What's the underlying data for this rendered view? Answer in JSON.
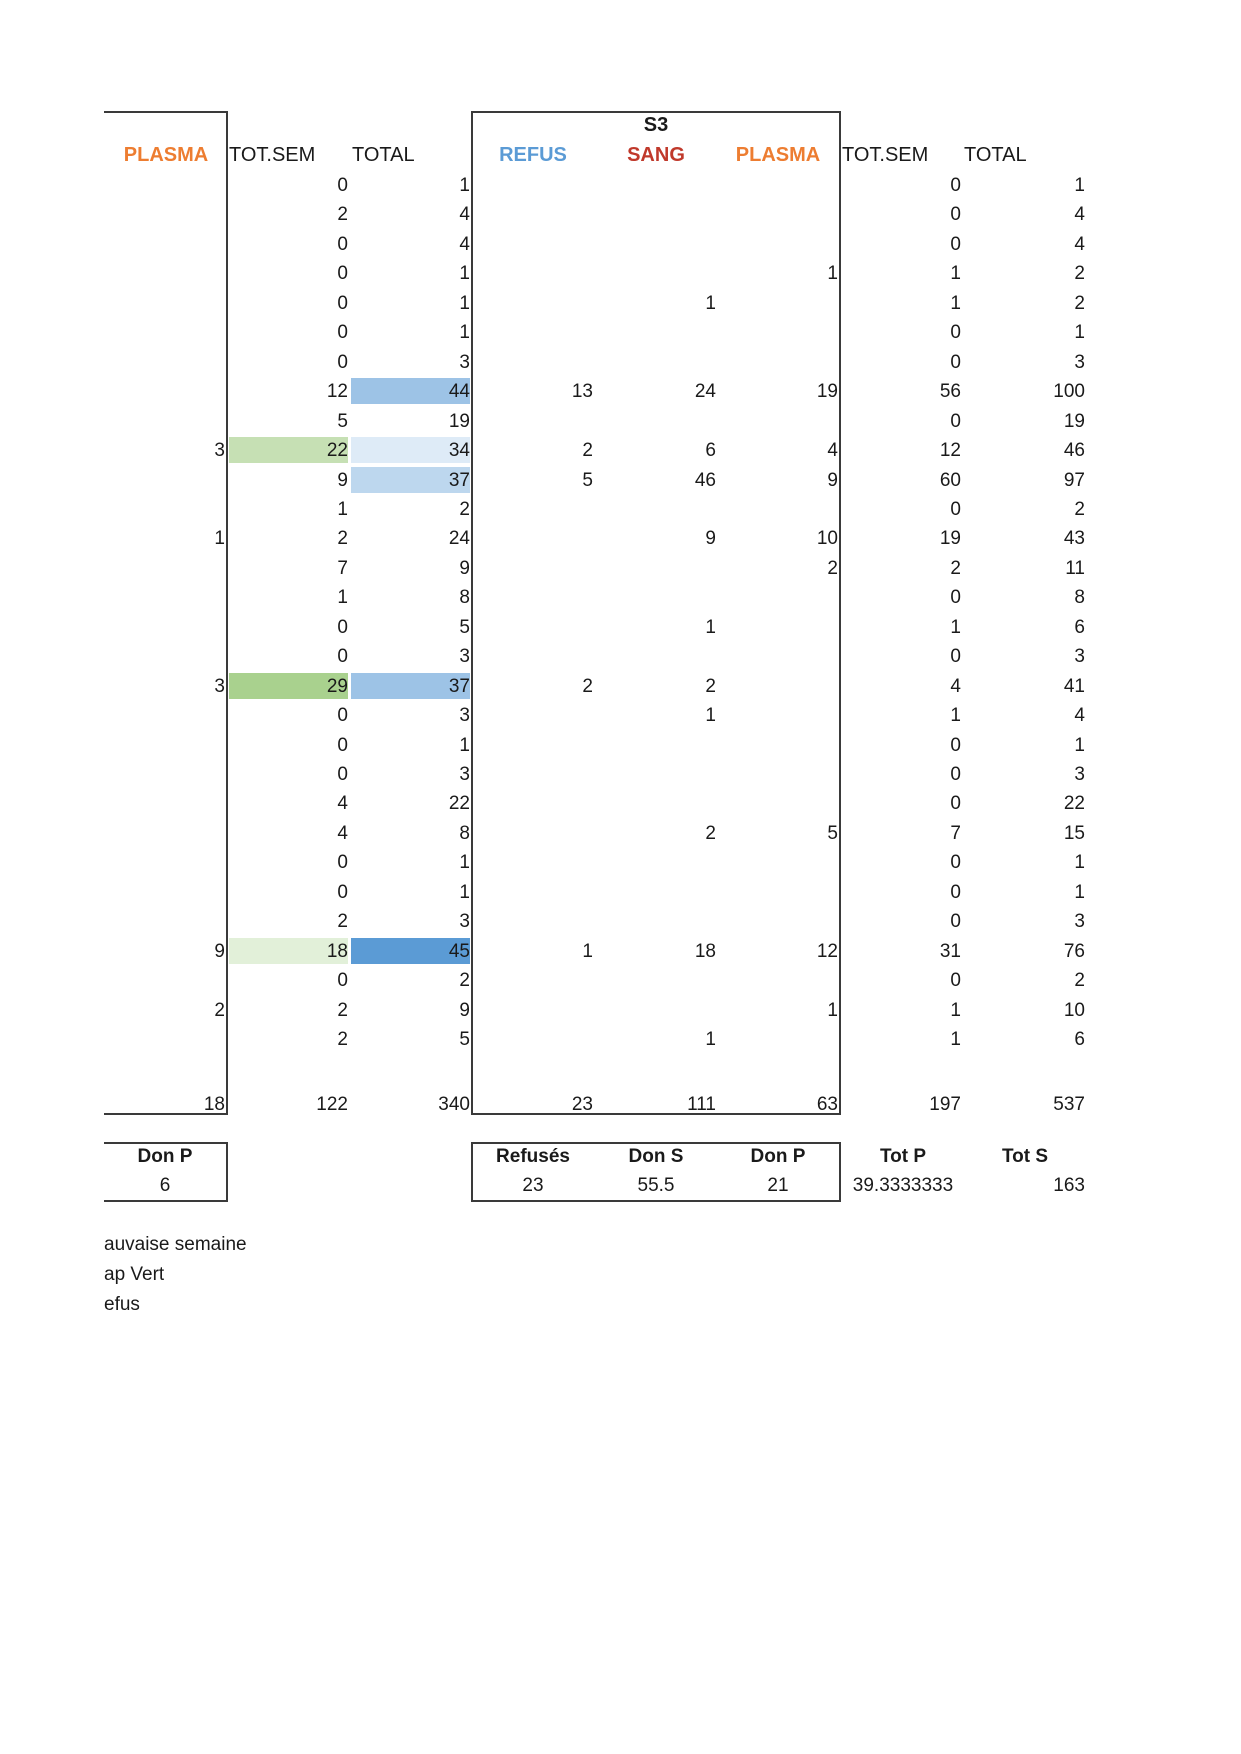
{
  "colors": {
    "refus": "#5b9bd5",
    "sang": "#c0392b",
    "plasma": "#ed7d31",
    "green_light": "#e2f0d9",
    "green_mid": "#c6e0b4",
    "green_dark": "#a9d18e",
    "blue_lightest": "#deebf7",
    "blue_light": "#bdd7ee",
    "blue_mid": "#9dc3e6",
    "blue_dark": "#5b9bd5"
  },
  "headers": {
    "left_plasma": "PLASMA",
    "left_totsem": "TOT.SEM",
    "left_total": "TOTAL",
    "s3_title": "S3",
    "refus": "REFUS",
    "sang": "SANG",
    "plasma": "PLASMA",
    "right_totsem": "TOT.SEM",
    "right_total": "TOTAL"
  },
  "rows": [
    {
      "plasma_l": "",
      "totsem_l": "0",
      "total_l": "1",
      "refus": "",
      "sang": "",
      "plasma": "",
      "totsem_r": "0",
      "total_r": "1"
    },
    {
      "plasma_l": "",
      "totsem_l": "2",
      "total_l": "4",
      "refus": "",
      "sang": "",
      "plasma": "",
      "totsem_r": "0",
      "total_r": "4"
    },
    {
      "plasma_l": "",
      "totsem_l": "0",
      "total_l": "4",
      "refus": "",
      "sang": "",
      "plasma": "",
      "totsem_r": "0",
      "total_r": "4"
    },
    {
      "plasma_l": "",
      "totsem_l": "0",
      "total_l": "1",
      "refus": "",
      "sang": "",
      "plasma": "1",
      "totsem_r": "1",
      "total_r": "2"
    },
    {
      "plasma_l": "",
      "totsem_l": "0",
      "total_l": "1",
      "refus": "",
      "sang": "1",
      "plasma": "",
      "totsem_r": "1",
      "total_r": "2"
    },
    {
      "plasma_l": "",
      "totsem_l": "0",
      "total_l": "1",
      "refus": "",
      "sang": "",
      "plasma": "",
      "totsem_r": "0",
      "total_r": "1"
    },
    {
      "plasma_l": "",
      "totsem_l": "0",
      "total_l": "3",
      "refus": "",
      "sang": "",
      "plasma": "",
      "totsem_r": "0",
      "total_r": "3"
    },
    {
      "plasma_l": "",
      "totsem_l": "12",
      "total_l": "44",
      "refus": "13",
      "sang": "24",
      "plasma": "19",
      "totsem_r": "56",
      "total_r": "100"
    },
    {
      "plasma_l": "",
      "totsem_l": "5",
      "total_l": "19",
      "refus": "",
      "sang": "",
      "plasma": "",
      "totsem_r": "0",
      "total_r": "19"
    },
    {
      "plasma_l": "3",
      "totsem_l": "22",
      "total_l": "34",
      "refus": "2",
      "sang": "6",
      "plasma": "4",
      "totsem_r": "12",
      "total_r": "46"
    },
    {
      "plasma_l": "",
      "totsem_l": "9",
      "total_l": "37",
      "refus": "5",
      "sang": "46",
      "plasma": "9",
      "totsem_r": "60",
      "total_r": "97"
    },
    {
      "plasma_l": "",
      "totsem_l": "1",
      "total_l": "2",
      "refus": "",
      "sang": "",
      "plasma": "",
      "totsem_r": "0",
      "total_r": "2"
    },
    {
      "plasma_l": "1",
      "totsem_l": "2",
      "total_l": "24",
      "refus": "",
      "sang": "9",
      "plasma": "10",
      "totsem_r": "19",
      "total_r": "43"
    },
    {
      "plasma_l": "",
      "totsem_l": "7",
      "total_l": "9",
      "refus": "",
      "sang": "",
      "plasma": "2",
      "totsem_r": "2",
      "total_r": "11"
    },
    {
      "plasma_l": "",
      "totsem_l": "1",
      "total_l": "8",
      "refus": "",
      "sang": "",
      "plasma": "",
      "totsem_r": "0",
      "total_r": "8"
    },
    {
      "plasma_l": "",
      "totsem_l": "0",
      "total_l": "5",
      "refus": "",
      "sang": "1",
      "plasma": "",
      "totsem_r": "1",
      "total_r": "6"
    },
    {
      "plasma_l": "",
      "totsem_l": "0",
      "total_l": "3",
      "refus": "",
      "sang": "",
      "plasma": "",
      "totsem_r": "0",
      "total_r": "3"
    },
    {
      "plasma_l": "3",
      "totsem_l": "29",
      "total_l": "37",
      "refus": "2",
      "sang": "2",
      "plasma": "",
      "totsem_r": "4",
      "total_r": "41"
    },
    {
      "plasma_l": "",
      "totsem_l": "0",
      "total_l": "3",
      "refus": "",
      "sang": "1",
      "plasma": "",
      "totsem_r": "1",
      "total_r": "4"
    },
    {
      "plasma_l": "",
      "totsem_l": "0",
      "total_l": "1",
      "refus": "",
      "sang": "",
      "plasma": "",
      "totsem_r": "0",
      "total_r": "1"
    },
    {
      "plasma_l": "",
      "totsem_l": "0",
      "total_l": "3",
      "refus": "",
      "sang": "",
      "plasma": "",
      "totsem_r": "0",
      "total_r": "3"
    },
    {
      "plasma_l": "",
      "totsem_l": "4",
      "total_l": "22",
      "refus": "",
      "sang": "",
      "plasma": "",
      "totsem_r": "0",
      "total_r": "22"
    },
    {
      "plasma_l": "",
      "totsem_l": "4",
      "total_l": "8",
      "refus": "",
      "sang": "2",
      "plasma": "5",
      "totsem_r": "7",
      "total_r": "15"
    },
    {
      "plasma_l": "",
      "totsem_l": "0",
      "total_l": "1",
      "refus": "",
      "sang": "",
      "plasma": "",
      "totsem_r": "0",
      "total_r": "1"
    },
    {
      "plasma_l": "",
      "totsem_l": "0",
      "total_l": "1",
      "refus": "",
      "sang": "",
      "plasma": "",
      "totsem_r": "0",
      "total_r": "1"
    },
    {
      "plasma_l": "",
      "totsem_l": "2",
      "total_l": "3",
      "refus": "",
      "sang": "",
      "plasma": "",
      "totsem_r": "0",
      "total_r": "3"
    },
    {
      "plasma_l": "9",
      "totsem_l": "18",
      "total_l": "45",
      "refus": "1",
      "sang": "18",
      "plasma": "12",
      "totsem_r": "31",
      "total_r": "76"
    },
    {
      "plasma_l": "",
      "totsem_l": "0",
      "total_l": "2",
      "refus": "",
      "sang": "",
      "plasma": "",
      "totsem_r": "0",
      "total_r": "2"
    },
    {
      "plasma_l": "2",
      "totsem_l": "2",
      "total_l": "9",
      "refus": "",
      "sang": "",
      "plasma": "1",
      "totsem_r": "1",
      "total_r": "10"
    },
    {
      "plasma_l": "",
      "totsem_l": "2",
      "total_l": "5",
      "refus": "",
      "sang": "1",
      "plasma": "",
      "totsem_r": "1",
      "total_r": "6"
    }
  ],
  "totals": {
    "plasma_l": "18",
    "totsem_l": "122",
    "total_l": "340",
    "refus": "23",
    "sang": "111",
    "plasma": "63",
    "totsem_r": "197",
    "total_r": "537"
  },
  "highlights": [
    {
      "row": 7,
      "col": "total_l",
      "color": "blue_mid"
    },
    {
      "row": 9,
      "col": "totsem_l",
      "color": "green_mid"
    },
    {
      "row": 9,
      "col": "total_l",
      "color": "blue_lightest"
    },
    {
      "row": 10,
      "col": "total_l",
      "color": "blue_light"
    },
    {
      "row": 17,
      "col": "totsem_l",
      "color": "green_dark"
    },
    {
      "row": 17,
      "col": "total_l",
      "color": "blue_mid"
    },
    {
      "row": 26,
      "col": "totsem_l",
      "color": "green_light"
    },
    {
      "row": 26,
      "col": "total_l",
      "color": "blue_dark"
    }
  ],
  "summary": {
    "left_label": "Don P",
    "left_value": "6",
    "refuses_label": "Refusés",
    "refuses_value": "23",
    "dons_label": "Don S",
    "dons_value": "55.5",
    "donp_label": "Don P",
    "donp_value": "21",
    "totp_label": "Tot P",
    "totp_value": "39.3333333",
    "tots_label": "Tot S",
    "tots_value": "163"
  },
  "legend": [
    "auvaise semaine",
    "ap Vert",
    "efus"
  ]
}
